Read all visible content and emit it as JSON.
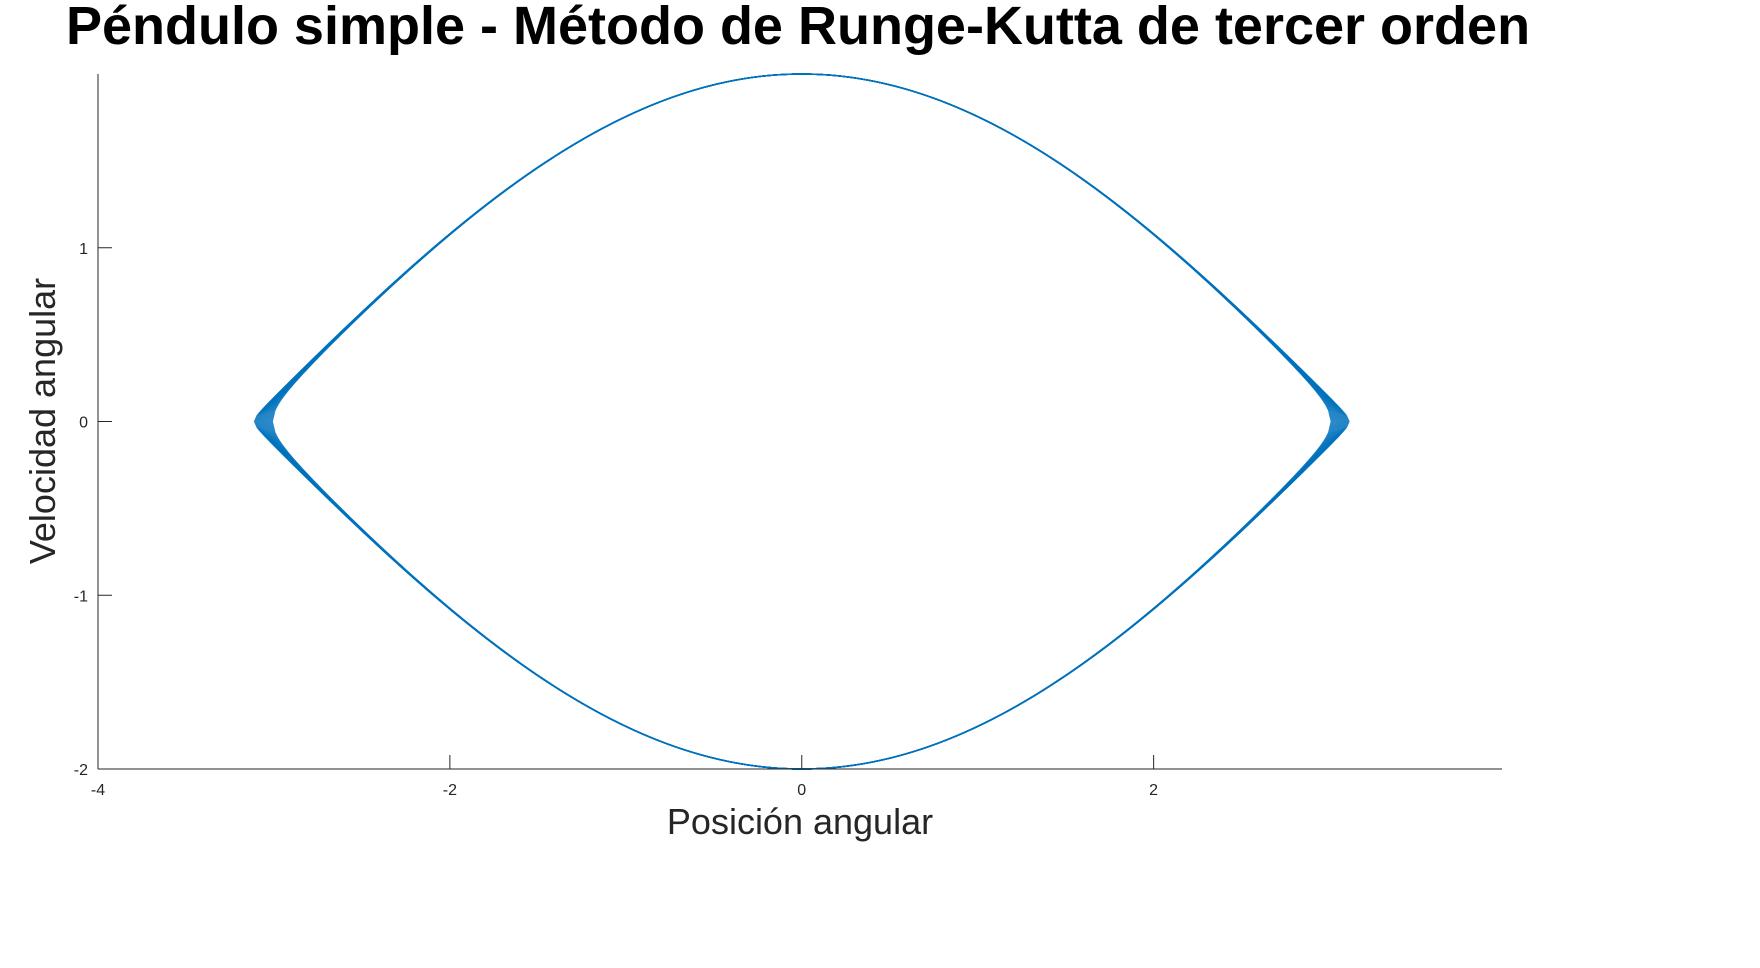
{
  "chart_data": {
    "type": "line",
    "title": "Péndulo simple - Método de Runge-Kutta de tercer orden",
    "xlabel": "Posición angular",
    "ylabel": "Velocidad angular",
    "xlim": [
      -4,
      3.98
    ],
    "ylim": [
      -2,
      2
    ],
    "xticks": [
      -4,
      -2,
      0,
      2
    ],
    "xtick_labels": [
      "-4",
      "-2",
      "0",
      "2"
    ],
    "yticks": [
      -2,
      -1,
      0,
      1
    ],
    "ytick_labels": [
      "-2",
      "-1",
      "0",
      "1"
    ],
    "grid": false,
    "legend": "none",
    "series": [
      {
        "style": "phase-portrait closed orbit (many overlapping cycles)",
        "color": "#0072BD",
        "amplitude_range": [
          3.01,
          3.11
        ],
        "omega_max": 2.0,
        "x_at_v0": [
          -3.11,
          3.11
        ],
        "v_at_x0": [
          2.0,
          -2.0
        ]
      }
    ]
  },
  "colors": {
    "line": "#0072BD",
    "axes": "#262626",
    "title": "#000000"
  }
}
